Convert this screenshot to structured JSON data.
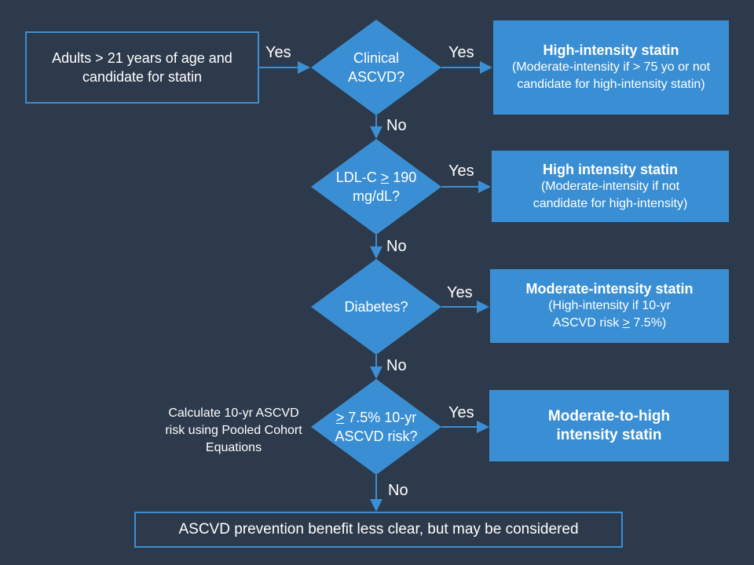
{
  "start": {
    "text": "Adults > 21 years of age and candidate for statin"
  },
  "decisions": [
    {
      "text": "Clinical ASCVD?"
    },
    {
      "prefix": "LDL-C ",
      "ge": ">",
      "suffix": " 190 mg/dL?"
    },
    {
      "text": "Diabetes?"
    },
    {
      "prefix": "",
      "ge": ">",
      "suffix": " 7.5% 10-yr ASCVD risk?"
    }
  ],
  "outcomes": [
    {
      "title": "High-intensity statin",
      "sub": "(Moderate-intensity if > 75 yo or not candidate for high-intensity statin)"
    },
    {
      "title": "High intensity statin",
      "sub": "(Moderate-intensity if not candidate for high-intensity)"
    },
    {
      "title": "Moderate-intensity statin",
      "sub_prefix": "(High-intensity if 10-yr ASCVD risk ",
      "sub_ge": ">",
      "sub_suffix": " 7.5%)"
    },
    {
      "title": "Moderate-to-high intensity statin"
    }
  ],
  "side_note": "Calculate 10-yr ASCVD risk using Pooled Cohort Equations",
  "end": {
    "text": "ASCVD prevention benefit less clear, but may be considered"
  },
  "labels": {
    "yes": "Yes",
    "no": "No"
  },
  "colors": {
    "background": "#2d3a4b",
    "accent": "#3a8fd4"
  }
}
